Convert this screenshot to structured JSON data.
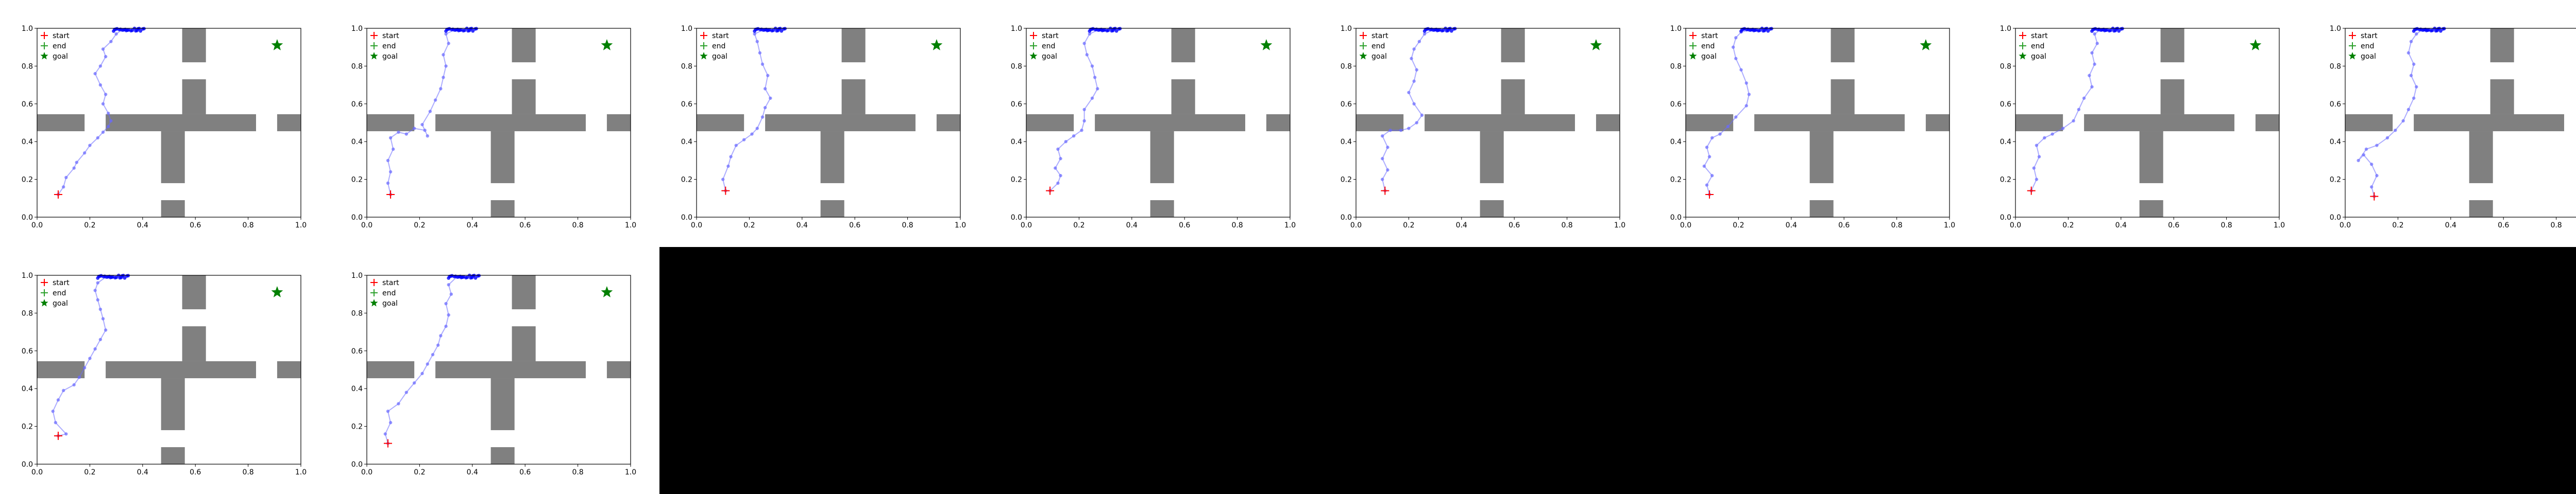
{
  "figure": {
    "background": "#ffffff",
    "empty_region_color": "#000000",
    "grid": false,
    "legend_placement": "top-left",
    "colors": {
      "wall": "#808080",
      "trajectory": "#6a6aff",
      "start": "#ff0000",
      "end": "#2ca02c",
      "goal": "#008000",
      "dense_cluster": "#0000ff"
    }
  },
  "legend": {
    "start": "start",
    "end": "end",
    "goal": "goal"
  },
  "axis_ticks": {
    "x": [
      "0.0",
      "0.2",
      "0.4",
      "0.6",
      "0.8",
      "1.0"
    ],
    "y": [
      "0.0",
      "0.2",
      "0.4",
      "0.6",
      "0.8",
      "1.0"
    ]
  },
  "chart_data": {
    "type": "scatter",
    "description_of_marks": "10 trajectory panels in a maze",
    "xlim": [
      0,
      1
    ],
    "ylim": [
      0,
      1
    ],
    "goal": [
      0.91,
      0.91
    ],
    "walls": [
      {
        "x0": 0.0,
        "y0": 0.455,
        "x1": 0.18,
        "y1": 0.545
      },
      {
        "x0": 0.26,
        "y0": 0.455,
        "x1": 0.83,
        "y1": 0.545
      },
      {
        "x0": 0.91,
        "y0": 0.455,
        "x1": 1.0,
        "y1": 0.545
      },
      {
        "x0": 0.47,
        "y0": 0.18,
        "x1": 0.56,
        "y1": 0.455
      },
      {
        "x0": 0.55,
        "y0": 0.545,
        "x1": 0.64,
        "y1": 0.73
      },
      {
        "x0": 0.55,
        "y0": 0.82,
        "x1": 0.64,
        "y1": 1.0
      },
      {
        "x0": 0.47,
        "y0": 0.0,
        "x1": 0.56,
        "y1": 0.09
      }
    ],
    "panels": [
      {
        "start": [
          0.08,
          0.12
        ],
        "trajectory": [
          [
            0.08,
            0.12
          ],
          [
            0.1,
            0.16
          ],
          [
            0.11,
            0.21
          ],
          [
            0.14,
            0.26
          ],
          [
            0.15,
            0.29
          ],
          [
            0.18,
            0.34
          ],
          [
            0.2,
            0.38
          ],
          [
            0.23,
            0.42
          ],
          [
            0.25,
            0.45
          ],
          [
            0.27,
            0.48
          ],
          [
            0.28,
            0.51
          ],
          [
            0.27,
            0.55
          ],
          [
            0.25,
            0.6
          ],
          [
            0.26,
            0.65
          ],
          [
            0.24,
            0.7
          ],
          [
            0.22,
            0.76
          ],
          [
            0.24,
            0.8
          ],
          [
            0.26,
            0.85
          ],
          [
            0.25,
            0.89
          ],
          [
            0.28,
            0.93
          ],
          [
            0.3,
            0.97
          ],
          [
            0.32,
            0.99
          ]
        ]
      },
      {
        "start": [
          0.09,
          0.12
        ],
        "trajectory": [
          [
            0.09,
            0.12
          ],
          [
            0.08,
            0.18
          ],
          [
            0.09,
            0.24
          ],
          [
            0.08,
            0.3
          ],
          [
            0.1,
            0.36
          ],
          [
            0.09,
            0.42
          ],
          [
            0.12,
            0.45
          ],
          [
            0.15,
            0.44
          ],
          [
            0.18,
            0.47
          ],
          [
            0.22,
            0.46
          ],
          [
            0.23,
            0.43
          ],
          [
            0.21,
            0.49
          ],
          [
            0.24,
            0.56
          ],
          [
            0.26,
            0.62
          ],
          [
            0.28,
            0.68
          ],
          [
            0.29,
            0.74
          ],
          [
            0.3,
            0.8
          ],
          [
            0.29,
            0.86
          ],
          [
            0.31,
            0.92
          ],
          [
            0.3,
            0.97
          ],
          [
            0.33,
            0.99
          ]
        ]
      },
      {
        "start": [
          0.11,
          0.14
        ],
        "trajectory": [
          [
            0.11,
            0.14
          ],
          [
            0.1,
            0.2
          ],
          [
            0.12,
            0.27
          ],
          [
            0.13,
            0.32
          ],
          [
            0.15,
            0.38
          ],
          [
            0.18,
            0.41
          ],
          [
            0.21,
            0.44
          ],
          [
            0.23,
            0.47
          ],
          [
            0.25,
            0.53
          ],
          [
            0.26,
            0.58
          ],
          [
            0.28,
            0.63
          ],
          [
            0.26,
            0.68
          ],
          [
            0.27,
            0.75
          ],
          [
            0.25,
            0.81
          ],
          [
            0.24,
            0.87
          ],
          [
            0.23,
            0.93
          ],
          [
            0.22,
            0.97
          ],
          [
            0.25,
            0.99
          ]
        ]
      },
      {
        "start": [
          0.09,
          0.14
        ],
        "trajectory": [
          [
            0.09,
            0.14
          ],
          [
            0.12,
            0.18
          ],
          [
            0.13,
            0.22
          ],
          [
            0.11,
            0.26
          ],
          [
            0.13,
            0.31
          ],
          [
            0.12,
            0.36
          ],
          [
            0.15,
            0.4
          ],
          [
            0.18,
            0.43
          ],
          [
            0.21,
            0.46
          ],
          [
            0.22,
            0.51
          ],
          [
            0.22,
            0.57
          ],
          [
            0.25,
            0.63
          ],
          [
            0.27,
            0.68
          ],
          [
            0.26,
            0.74
          ],
          [
            0.25,
            0.8
          ],
          [
            0.23,
            0.86
          ],
          [
            0.22,
            0.92
          ],
          [
            0.24,
            0.97
          ],
          [
            0.27,
            0.99
          ]
        ]
      },
      {
        "start": [
          0.11,
          0.14
        ],
        "trajectory": [
          [
            0.11,
            0.14
          ],
          [
            0.1,
            0.2
          ],
          [
            0.12,
            0.25
          ],
          [
            0.1,
            0.31
          ],
          [
            0.12,
            0.37
          ],
          [
            0.1,
            0.43
          ],
          [
            0.13,
            0.46
          ],
          [
            0.17,
            0.46
          ],
          [
            0.2,
            0.47
          ],
          [
            0.23,
            0.5
          ],
          [
            0.25,
            0.54
          ],
          [
            0.22,
            0.6
          ],
          [
            0.2,
            0.66
          ],
          [
            0.22,
            0.72
          ],
          [
            0.23,
            0.78
          ],
          [
            0.21,
            0.84
          ],
          [
            0.22,
            0.89
          ],
          [
            0.24,
            0.93
          ],
          [
            0.26,
            0.97
          ],
          [
            0.29,
            0.99
          ]
        ]
      },
      {
        "start": [
          0.09,
          0.12
        ],
        "trajectory": [
          [
            0.09,
            0.12
          ],
          [
            0.08,
            0.17
          ],
          [
            0.1,
            0.22
          ],
          [
            0.07,
            0.27
          ],
          [
            0.09,
            0.32
          ],
          [
            0.08,
            0.37
          ],
          [
            0.1,
            0.42
          ],
          [
            0.13,
            0.44
          ],
          [
            0.16,
            0.48
          ],
          [
            0.19,
            0.53
          ],
          [
            0.23,
            0.59
          ],
          [
            0.24,
            0.65
          ],
          [
            0.23,
            0.71
          ],
          [
            0.21,
            0.78
          ],
          [
            0.19,
            0.84
          ],
          [
            0.18,
            0.9
          ],
          [
            0.19,
            0.95
          ],
          [
            0.21,
            0.98
          ],
          [
            0.24,
            0.99
          ]
        ]
      },
      {
        "start": [
          0.06,
          0.14
        ],
        "trajectory": [
          [
            0.06,
            0.14
          ],
          [
            0.08,
            0.2
          ],
          [
            0.07,
            0.26
          ],
          [
            0.09,
            0.32
          ],
          [
            0.08,
            0.38
          ],
          [
            0.11,
            0.42
          ],
          [
            0.14,
            0.44
          ],
          [
            0.18,
            0.47
          ],
          [
            0.22,
            0.51
          ],
          [
            0.24,
            0.57
          ],
          [
            0.26,
            0.63
          ],
          [
            0.29,
            0.69
          ],
          [
            0.28,
            0.75
          ],
          [
            0.3,
            0.81
          ],
          [
            0.29,
            0.87
          ],
          [
            0.31,
            0.92
          ],
          [
            0.3,
            0.97
          ],
          [
            0.32,
            0.99
          ]
        ]
      },
      {
        "start": [
          0.11,
          0.11
        ],
        "trajectory": [
          [
            0.11,
            0.11
          ],
          [
            0.1,
            0.16
          ],
          [
            0.12,
            0.22
          ],
          [
            0.1,
            0.28
          ],
          [
            0.07,
            0.33
          ],
          [
            0.05,
            0.3
          ],
          [
            0.08,
            0.36
          ],
          [
            0.12,
            0.38
          ],
          [
            0.16,
            0.42
          ],
          [
            0.19,
            0.46
          ],
          [
            0.22,
            0.51
          ],
          [
            0.24,
            0.57
          ],
          [
            0.26,
            0.63
          ],
          [
            0.27,
            0.69
          ],
          [
            0.25,
            0.75
          ],
          [
            0.26,
            0.81
          ],
          [
            0.24,
            0.87
          ],
          [
            0.25,
            0.93
          ],
          [
            0.27,
            0.97
          ],
          [
            0.29,
            0.99
          ]
        ]
      },
      {
        "start": [
          0.08,
          0.15
        ],
        "trajectory": [
          [
            0.08,
            0.15
          ],
          [
            0.11,
            0.16
          ],
          [
            0.07,
            0.22
          ],
          [
            0.06,
            0.28
          ],
          [
            0.08,
            0.34
          ],
          [
            0.1,
            0.39
          ],
          [
            0.14,
            0.42
          ],
          [
            0.16,
            0.46
          ],
          [
            0.18,
            0.51
          ],
          [
            0.2,
            0.56
          ],
          [
            0.22,
            0.61
          ],
          [
            0.24,
            0.66
          ],
          [
            0.26,
            0.71
          ],
          [
            0.25,
            0.77
          ],
          [
            0.24,
            0.82
          ],
          [
            0.23,
            0.87
          ],
          [
            0.22,
            0.92
          ],
          [
            0.23,
            0.96
          ],
          [
            0.26,
            0.99
          ]
        ]
      },
      {
        "start": [
          0.08,
          0.11
        ],
        "trajectory": [
          [
            0.08,
            0.11
          ],
          [
            0.07,
            0.16
          ],
          [
            0.09,
            0.22
          ],
          [
            0.08,
            0.28
          ],
          [
            0.12,
            0.32
          ],
          [
            0.15,
            0.38
          ],
          [
            0.18,
            0.43
          ],
          [
            0.21,
            0.48
          ],
          [
            0.23,
            0.53
          ],
          [
            0.25,
            0.58
          ],
          [
            0.27,
            0.63
          ],
          [
            0.28,
            0.68
          ],
          [
            0.3,
            0.73
          ],
          [
            0.31,
            0.79
          ],
          [
            0.3,
            0.85
          ],
          [
            0.32,
            0.9
          ],
          [
            0.31,
            0.95
          ],
          [
            0.34,
            0.99
          ]
        ]
      }
    ]
  }
}
